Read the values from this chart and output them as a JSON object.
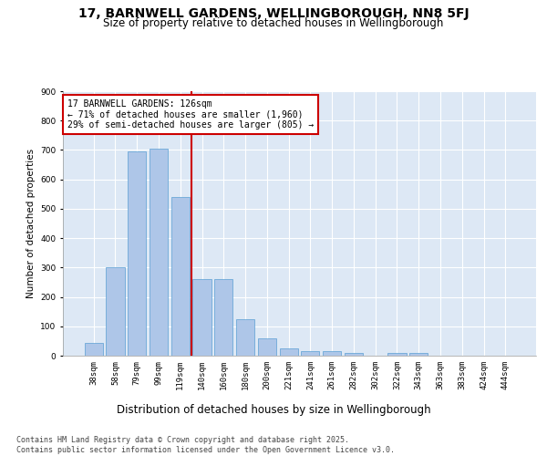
{
  "title": "17, BARNWELL GARDENS, WELLINGBOROUGH, NN8 5FJ",
  "subtitle": "Size of property relative to detached houses in Wellingborough",
  "xlabel": "Distribution of detached houses by size in Wellingborough",
  "ylabel": "Number of detached properties",
  "categories": [
    "38sqm",
    "58sqm",
    "79sqm",
    "99sqm",
    "119sqm",
    "140sqm",
    "160sqm",
    "180sqm",
    "200sqm",
    "221sqm",
    "241sqm",
    "261sqm",
    "282sqm",
    "302sqm",
    "322sqm",
    "343sqm",
    "363sqm",
    "383sqm",
    "424sqm",
    "444sqm"
  ],
  "values": [
    45,
    300,
    695,
    705,
    540,
    260,
    260,
    125,
    60,
    25,
    15,
    15,
    8,
    0,
    10,
    8,
    0,
    0,
    0,
    0
  ],
  "bar_color": "#aec6e8",
  "bar_edge_color": "#5a9fd4",
  "background_color": "#dde8f5",
  "grid_color": "#ffffff",
  "annotation_text": "17 BARNWELL GARDENS: 126sqm\n← 71% of detached houses are smaller (1,960)\n29% of semi-detached houses are larger (805) →",
  "annotation_box_color": "#ffffff",
  "annotation_box_edge_color": "#cc0000",
  "vline_x": 4.5,
  "vline_color": "#cc0000",
  "ylim": [
    0,
    900
  ],
  "yticks": [
    0,
    100,
    200,
    300,
    400,
    500,
    600,
    700,
    800,
    900
  ],
  "footer": "Contains HM Land Registry data © Crown copyright and database right 2025.\nContains public sector information licensed under the Open Government Licence v3.0.",
  "title_fontsize": 10,
  "subtitle_fontsize": 8.5,
  "xlabel_fontsize": 8.5,
  "ylabel_fontsize": 7.5,
  "tick_fontsize": 6.5,
  "annotation_fontsize": 7,
  "footer_fontsize": 6
}
